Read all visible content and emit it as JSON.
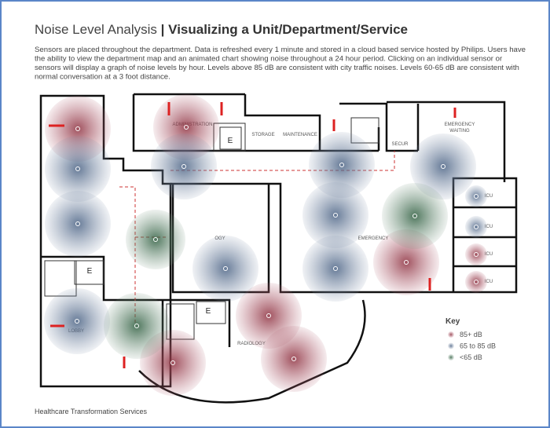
{
  "header": {
    "title": "Noise Level Analysis",
    "separator": "|",
    "subtitle": "Visualizing a Unit/Department/Service"
  },
  "description": [
    "Sensors are placed throughout the department.  Data is refreshed every 1 minute and stored in a cloud based service hosted by Philips.  Users have",
    "the ability to view the department map and an animated chart showing noise throughout a 24 hour period.  Clicking on an individual sensor or",
    "sensors will display a graph of noise levels by hour.  Levels above 85 dB are consistent with city traffic noises.  Levels 60-65 dB are consistent with",
    "normal conversation at a 3 foot distance."
  ],
  "rooms": [
    "ADMINISTRATION",
    "STORAGE",
    "MAINTENANCE",
    "EMERGENCY",
    "WAITING",
    "LOBBY",
    "RADIOLOGY",
    "EMERGENCY",
    "OGY",
    "SECUR",
    "ICU",
    "ICU",
    "ICU",
    "ICU",
    "E",
    "E",
    "E"
  ],
  "key": {
    "title": "Key",
    "items": [
      "85+ dB",
      "65 to 85 dB",
      "<65 dB"
    ]
  },
  "footer": "Healthcare Transformation Services"
}
